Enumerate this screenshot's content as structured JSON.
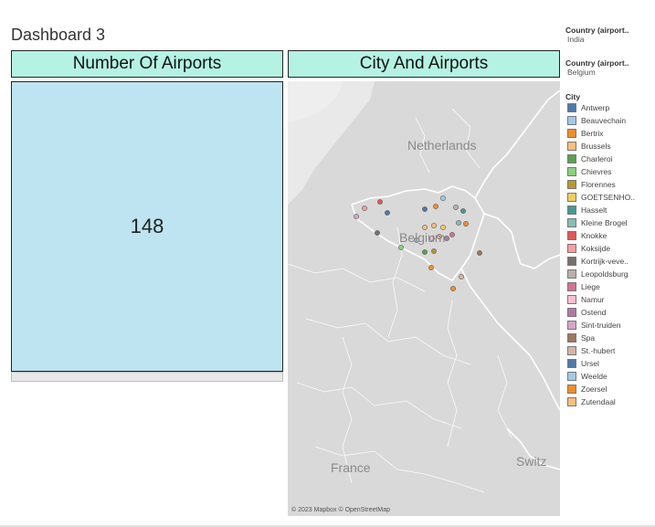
{
  "dashboard": {
    "title": "Dashboard 3"
  },
  "kpi_sheet": {
    "title": "Number Of Airports",
    "value": "148"
  },
  "map_sheet": {
    "title": "City And Airports",
    "attribution": "© 2023 Mapbox © OpenStreetMap",
    "labels": {
      "netherlands": "Netherlands",
      "belgium": "Belgium",
      "france": "France",
      "switzerland": "Switz"
    }
  },
  "filters": [
    {
      "label": "Country (airport..",
      "value": "India"
    },
    {
      "label": "Country (airport..",
      "value": "Belgium"
    }
  ],
  "legend": {
    "title": "City",
    "items": [
      {
        "name": "Antwerp",
        "color": "#4e79a7"
      },
      {
        "name": "Beauvechain",
        "color": "#a0cbe8"
      },
      {
        "name": "Bertrix",
        "color": "#f28e2b"
      },
      {
        "name": "Brussels",
        "color": "#ffbe7d"
      },
      {
        "name": "Charleroi",
        "color": "#59a14f"
      },
      {
        "name": "Chievres",
        "color": "#8cd17d"
      },
      {
        "name": "Florennes",
        "color": "#b6992d"
      },
      {
        "name": "GOETSENHO..",
        "color": "#f1ce63"
      },
      {
        "name": "Hasselt",
        "color": "#499894"
      },
      {
        "name": "Kleine Brogel",
        "color": "#86bcb6"
      },
      {
        "name": "Knokke",
        "color": "#e15759"
      },
      {
        "name": "Koksijde",
        "color": "#ff9d9a"
      },
      {
        "name": "Kortrijk-veve..",
        "color": "#79706e"
      },
      {
        "name": "Leopoldsburg",
        "color": "#bab0ac"
      },
      {
        "name": "Liege",
        "color": "#d37295"
      },
      {
        "name": "Namur",
        "color": "#fabfd2"
      },
      {
        "name": "Ostend",
        "color": "#b07aa1"
      },
      {
        "name": "Sint-truiden",
        "color": "#d4a6c8"
      },
      {
        "name": "Spa",
        "color": "#9d7660"
      },
      {
        "name": "St.-hubert",
        "color": "#d7b5a6"
      },
      {
        "name": "Ursel",
        "color": "#4e79a7"
      },
      {
        "name": "Weelde",
        "color": "#a0cbe8"
      },
      {
        "name": "Zoersel",
        "color": "#f28e2b"
      },
      {
        "name": "Zutendaal",
        "color": "#ffbe7d"
      }
    ]
  }
}
